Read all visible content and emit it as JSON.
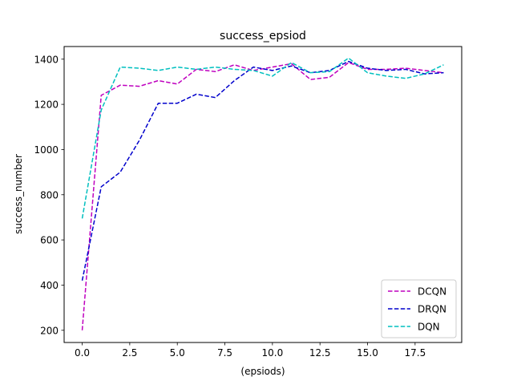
{
  "chart_data": {
    "type": "line",
    "title": "success_epsiod",
    "xlabel": "(epsiods)",
    "ylabel": "success_number",
    "xlim": [
      -0.95,
      19.95
    ],
    "ylim": [
      146,
      1456
    ],
    "xticks": [
      0,
      2.5,
      5,
      7.5,
      10,
      12.5,
      15,
      17.5
    ],
    "xtick_labels": [
      "0.0",
      "2.5",
      "5.0",
      "7.5",
      "10.0",
      "12.5",
      "15.0",
      "17.5"
    ],
    "yticks": [
      200,
      400,
      600,
      800,
      1000,
      1200,
      1400
    ],
    "ytick_labels": [
      "200",
      "400",
      "600",
      "800",
      "1000",
      "1200",
      "1400"
    ],
    "grid": false,
    "legend_position": "lower-right",
    "x": [
      0,
      1,
      2,
      3,
      4,
      5,
      6,
      7,
      8,
      9,
      10,
      11,
      12,
      13,
      14,
      15,
      16,
      17,
      18,
      19
    ],
    "series": [
      {
        "name": "DCQN",
        "color": "#bf00bf",
        "linestyle": "dashed",
        "values": [
          200,
          1240,
          1285,
          1280,
          1305,
          1290,
          1355,
          1345,
          1375,
          1350,
          1365,
          1380,
          1310,
          1320,
          1385,
          1355,
          1355,
          1360,
          1350,
          1340
        ]
      },
      {
        "name": "DRQN",
        "color": "#0000cc",
        "linestyle": "dashed",
        "values": [
          420,
          835,
          900,
          1040,
          1205,
          1205,
          1245,
          1230,
          1305,
          1365,
          1350,
          1370,
          1340,
          1350,
          1390,
          1360,
          1350,
          1355,
          1335,
          1340
        ]
      },
      {
        "name": "DQN",
        "color": "#00bfbf",
        "linestyle": "dashed",
        "values": [
          695,
          1175,
          1365,
          1360,
          1350,
          1365,
          1355,
          1365,
          1355,
          1350,
          1325,
          1385,
          1340,
          1345,
          1405,
          1340,
          1325,
          1315,
          1335,
          1375
        ]
      }
    ]
  }
}
